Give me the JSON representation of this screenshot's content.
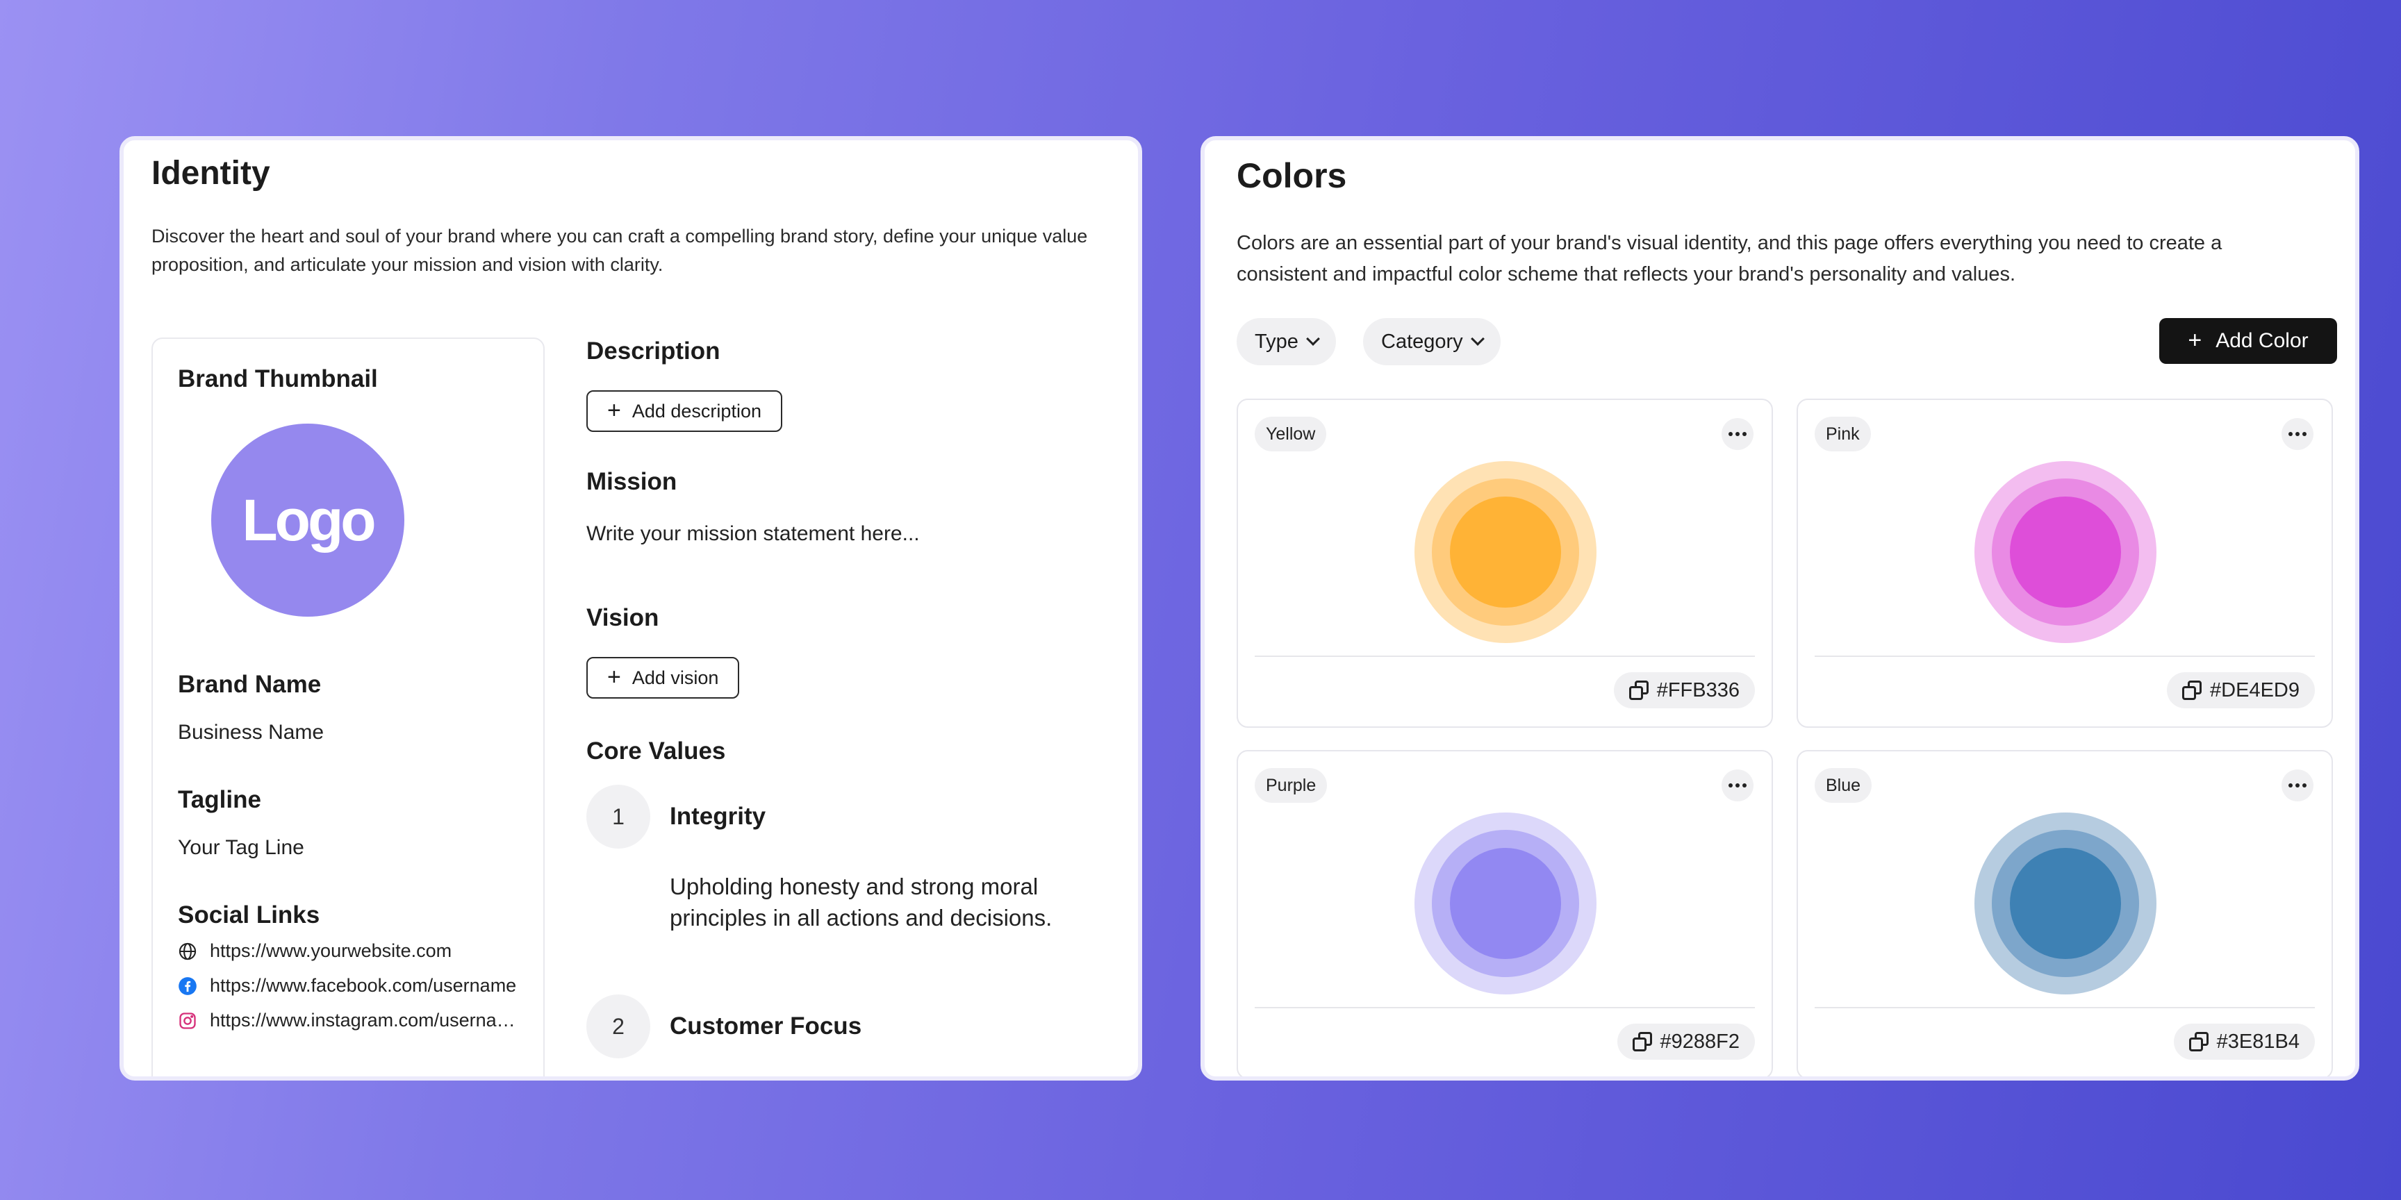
{
  "identity": {
    "title": "Identity",
    "description": "Discover the heart and soul of your brand where you can craft a compelling brand story, define your unique value proposition, and articulate your mission and vision with clarity.",
    "thumbnail_label": "Brand Thumbnail",
    "logo_text": "Logo",
    "brand_name_label": "Brand Name",
    "brand_name_value": "Business Name",
    "tagline_label": "Tagline",
    "tagline_value": "Your Tag Line",
    "social_label": "Social Links",
    "social_links": [
      {
        "icon": "globe-icon",
        "url": "https://www.yourwebsite.com"
      },
      {
        "icon": "facebook-icon",
        "url": "https://www.facebook.com/username"
      },
      {
        "icon": "instagram-icon",
        "url": "https://www.instagram.com/username"
      }
    ],
    "description_label": "Description",
    "add_description": "Add description",
    "mission_label": "Mission",
    "mission_placeholder": "Write your mission statement here...",
    "vision_label": "Vision",
    "add_vision": "Add vision",
    "core_values_label": "Core Values",
    "core_values": [
      {
        "num": "1",
        "title": "Integrity",
        "body": "Upholding honesty and strong moral principles in all actions and decisions."
      },
      {
        "num": "2",
        "title": "Customer Focus",
        "body": ""
      }
    ],
    "logo_color": "#9588EE"
  },
  "colors": {
    "title": "Colors",
    "description": "Colors are an essential part of your brand's visual identity, and this page offers everything you need to create a consistent and impactful color scheme that reflects your brand's personality and values.",
    "filter_type": "Type",
    "filter_category": "Category",
    "add_color": "Add Color",
    "cards": [
      {
        "name": "Yellow",
        "hex": "#FFB336",
        "tint1": "#FFE2B4",
        "tint2": "#FFCB7C"
      },
      {
        "name": "Pink",
        "hex": "#DE4ED9",
        "tint1": "#F3BDF0",
        "tint2": "#E98AE4"
      },
      {
        "name": "Purple",
        "hex": "#9288F2",
        "tint1": "#DCD8FA",
        "tint2": "#B6AFF6"
      },
      {
        "name": "Blue",
        "hex": "#3E81B4",
        "tint1": "#B6CCE0",
        "tint2": "#7DA6CB"
      }
    ]
  }
}
